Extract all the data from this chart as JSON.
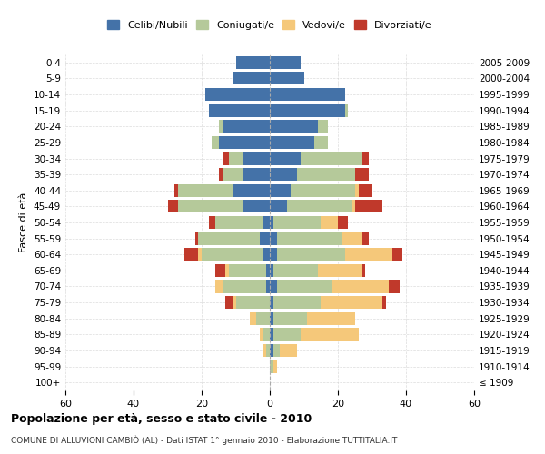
{
  "age_groups": [
    "100+",
    "95-99",
    "90-94",
    "85-89",
    "80-84",
    "75-79",
    "70-74",
    "65-69",
    "60-64",
    "55-59",
    "50-54",
    "45-49",
    "40-44",
    "35-39",
    "30-34",
    "25-29",
    "20-24",
    "15-19",
    "10-14",
    "5-9",
    "0-4"
  ],
  "birth_years": [
    "≤ 1909",
    "1910-1914",
    "1915-1919",
    "1920-1924",
    "1925-1929",
    "1930-1934",
    "1935-1939",
    "1940-1944",
    "1945-1949",
    "1950-1954",
    "1955-1959",
    "1960-1964",
    "1965-1969",
    "1970-1974",
    "1975-1979",
    "1980-1984",
    "1985-1989",
    "1990-1994",
    "1995-1999",
    "2000-2004",
    "2005-2009"
  ],
  "males": {
    "celibi": [
      0,
      0,
      0,
      0,
      0,
      0,
      1,
      1,
      2,
      3,
      2,
      8,
      11,
      8,
      8,
      15,
      14,
      18,
      19,
      11,
      10
    ],
    "coniugati": [
      0,
      0,
      1,
      2,
      4,
      10,
      13,
      11,
      18,
      18,
      14,
      19,
      16,
      6,
      4,
      2,
      1,
      0,
      0,
      0,
      0
    ],
    "vedovi": [
      0,
      0,
      1,
      1,
      2,
      1,
      2,
      1,
      1,
      0,
      0,
      0,
      0,
      0,
      0,
      0,
      0,
      0,
      0,
      0,
      0
    ],
    "divorziati": [
      0,
      0,
      0,
      0,
      0,
      2,
      0,
      3,
      4,
      1,
      2,
      3,
      1,
      1,
      2,
      0,
      0,
      0,
      0,
      0,
      0
    ]
  },
  "females": {
    "nubili": [
      0,
      0,
      1,
      1,
      1,
      1,
      2,
      1,
      2,
      2,
      1,
      5,
      6,
      8,
      9,
      13,
      14,
      22,
      22,
      10,
      9
    ],
    "coniugate": [
      0,
      1,
      2,
      8,
      10,
      14,
      16,
      13,
      20,
      19,
      14,
      19,
      19,
      17,
      18,
      4,
      3,
      1,
      0,
      0,
      0
    ],
    "vedove": [
      0,
      1,
      5,
      17,
      14,
      18,
      17,
      13,
      14,
      6,
      5,
      1,
      1,
      0,
      0,
      0,
      0,
      0,
      0,
      0,
      0
    ],
    "divorziate": [
      0,
      0,
      0,
      0,
      0,
      1,
      3,
      1,
      3,
      2,
      3,
      8,
      4,
      4,
      2,
      0,
      0,
      0,
      0,
      0,
      0
    ]
  },
  "colors": {
    "celibi": "#4472a8",
    "coniugati": "#b5c99a",
    "vedovi": "#f5c87a",
    "divorziati": "#c0392b"
  },
  "xlim": 60,
  "title": "Popolazione per età, sesso e stato civile - 2010",
  "subtitle": "COMUNE DI ALLUVIONI CAMBIÒ (AL) - Dati ISTAT 1° gennaio 2010 - Elaborazione TUTTITALIA.IT",
  "ylabel_left": "Fasce di età",
  "legend_labels": [
    "Celibi/Nubili",
    "Coniugati/e",
    "Vedovi/e",
    "Divorziati/e"
  ],
  "background_color": "#ffffff",
  "grid_color": "#cccccc"
}
